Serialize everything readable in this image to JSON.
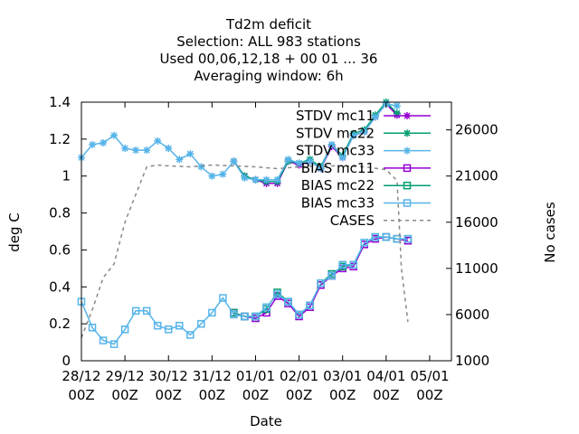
{
  "chart_data": {
    "type": "line",
    "title": [
      "Td2m deficit",
      "Selection: ALL    983 stations",
      "Used  00,06,12,18 + 00 01 ... 36",
      "Averaging window:  6h"
    ],
    "xlabel": "Date",
    "ylabel": "deg C",
    "y2label": "No cases",
    "xlim": [
      0,
      8.5
    ],
    "ylim": [
      0,
      1.4
    ],
    "y2lim": [
      1000,
      29000
    ],
    "x_ticks": [
      {
        "x": 0,
        "l1": "28/12",
        "l2": "00Z"
      },
      {
        "x": 1,
        "l1": "29/12",
        "l2": "00Z"
      },
      {
        "x": 2,
        "l1": "30/12",
        "l2": "00Z"
      },
      {
        "x": 3,
        "l1": "31/12",
        "l2": "00Z"
      },
      {
        "x": 4,
        "l1": "01/01",
        "l2": "00Z"
      },
      {
        "x": 5,
        "l1": "02/01",
        "l2": "00Z"
      },
      {
        "x": 6,
        "l1": "03/01",
        "l2": "00Z"
      },
      {
        "x": 7,
        "l1": "04/01",
        "l2": "00Z"
      },
      {
        "x": 8,
        "l1": "05/01",
        "l2": "00Z"
      }
    ],
    "y_ticks": [
      0,
      0.2,
      0.4,
      0.6,
      0.8,
      1,
      1.2,
      1.4
    ],
    "y_tick_labels": [
      "0",
      "0.2",
      "0.4",
      "0.6",
      "0.8",
      "1",
      "1.2",
      "1.4"
    ],
    "y2_ticks": [
      1000,
      6000,
      11000,
      16000,
      21000,
      26000
    ],
    "y2_tick_labels": [
      "1000",
      "6000",
      "11000",
      "16000",
      "21000",
      "26000"
    ],
    "legend_position": "top-right",
    "series": [
      {
        "name": "STDV mc11",
        "axis": "y",
        "color": "#9400d3",
        "marker": "star",
        "dash": "",
        "x": [
          3.5,
          3.75,
          4.0,
          4.25,
          4.5,
          4.75,
          5.0,
          5.25,
          5.5,
          5.75,
          6.0,
          6.25,
          6.5,
          6.75,
          7.0,
          7.25
        ],
        "y": [
          1.08,
          1.0,
          0.98,
          0.96,
          0.96,
          1.08,
          1.06,
          1.08,
          1.04,
          1.16,
          1.1,
          1.22,
          1.24,
          1.32,
          1.39,
          1.33
        ]
      },
      {
        "name": "STDV mc22",
        "axis": "y",
        "color": "#009e73",
        "marker": "star",
        "dash": "",
        "x": [
          3.5,
          3.75,
          4.0,
          4.25,
          4.5,
          4.75,
          5.0,
          5.25,
          5.5,
          5.75,
          6.0,
          6.25,
          6.5,
          6.75,
          7.0,
          7.25
        ],
        "y": [
          1.08,
          1.0,
          0.98,
          0.97,
          0.97,
          1.08,
          1.07,
          1.09,
          1.05,
          1.17,
          1.11,
          1.23,
          1.25,
          1.33,
          1.4,
          1.34
        ]
      },
      {
        "name": "STDV mc33",
        "axis": "y",
        "color": "#56b4e9",
        "marker": "star",
        "dash": "",
        "x": [
          0,
          0.25,
          0.5,
          0.75,
          1.0,
          1.25,
          1.5,
          1.75,
          2.0,
          2.25,
          2.5,
          2.75,
          3.0,
          3.25,
          3.5,
          3.75,
          4.0,
          4.25,
          4.5,
          4.75,
          5.0,
          5.25,
          5.5,
          5.75,
          6.0,
          6.25,
          6.5,
          6.75,
          7.0,
          7.25
        ],
        "y": [
          1.1,
          1.17,
          1.18,
          1.22,
          1.15,
          1.14,
          1.14,
          1.19,
          1.15,
          1.09,
          1.12,
          1.05,
          1.0,
          1.01,
          1.08,
          0.99,
          0.98,
          0.98,
          0.98,
          1.09,
          1.07,
          1.08,
          1.04,
          1.17,
          1.1,
          1.22,
          1.24,
          1.32,
          1.39,
          1.38
        ]
      },
      {
        "name": "BIAS mc11",
        "axis": "y",
        "color": "#9400d3",
        "marker": "square",
        "dash": "",
        "x": [
          3.5,
          3.75,
          4.0,
          4.25,
          4.5,
          4.75,
          5.0,
          5.25,
          5.5,
          5.75,
          6.0,
          6.25,
          6.5,
          6.75,
          7.0,
          7.25,
          7.5
        ],
        "y": [
          0.26,
          0.24,
          0.23,
          0.26,
          0.35,
          0.31,
          0.24,
          0.29,
          0.41,
          0.46,
          0.5,
          0.51,
          0.63,
          0.66,
          0.67,
          0.66,
          0.65
        ]
      },
      {
        "name": "BIAS mc22",
        "axis": "y",
        "color": "#009e73",
        "marker": "square",
        "dash": "",
        "x": [
          3.5,
          3.75,
          4.0,
          4.25,
          4.5,
          4.75,
          5.0,
          5.25,
          5.5,
          5.75,
          6.0,
          6.25,
          6.5,
          6.75,
          7.0,
          7.25,
          7.5
        ],
        "y": [
          0.26,
          0.24,
          0.24,
          0.28,
          0.37,
          0.32,
          0.25,
          0.3,
          0.42,
          0.47,
          0.51,
          0.52,
          0.64,
          0.67,
          0.67,
          0.66,
          0.66
        ]
      },
      {
        "name": "BIAS mc33",
        "axis": "y",
        "color": "#56b4e9",
        "marker": "square",
        "dash": "",
        "x": [
          0,
          0.25,
          0.5,
          0.75,
          1.0,
          1.25,
          1.5,
          1.75,
          2.0,
          2.25,
          2.5,
          2.75,
          3.0,
          3.25,
          3.5,
          3.75,
          4.0,
          4.25,
          4.5,
          4.75,
          5.0,
          5.25,
          5.5,
          5.75,
          6.0,
          6.25,
          6.5,
          6.75,
          7.0,
          7.25,
          7.5
        ],
        "y": [
          0.32,
          0.18,
          0.11,
          0.09,
          0.17,
          0.27,
          0.27,
          0.19,
          0.17,
          0.19,
          0.14,
          0.2,
          0.26,
          0.34,
          0.25,
          0.24,
          0.24,
          0.29,
          0.36,
          0.32,
          0.25,
          0.3,
          0.42,
          0.46,
          0.52,
          0.52,
          0.64,
          0.67,
          0.67,
          0.66,
          0.66
        ]
      },
      {
        "name": "CASES",
        "axis": "y2",
        "color": "#888888",
        "marker": "none",
        "dash": "4,4",
        "x": [
          0,
          0.25,
          0.5,
          0.75,
          1.0,
          1.25,
          1.5,
          1.75,
          2.0,
          2.5,
          3.0,
          3.5,
          4.0,
          4.5,
          5.0,
          5.5,
          6.0,
          6.5,
          7.0,
          7.25,
          7.35,
          7.5
        ],
        "y": [
          3500,
          6500,
          10000,
          11500,
          16000,
          19000,
          22000,
          22200,
          22100,
          22000,
          22200,
          22100,
          22000,
          21800,
          22000,
          22100,
          22100,
          22000,
          21700,
          20500,
          11000,
          5200
        ]
      }
    ]
  }
}
